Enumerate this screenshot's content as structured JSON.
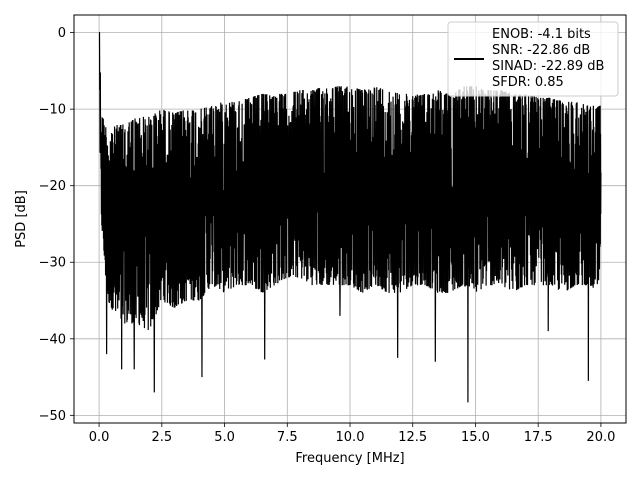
{
  "chart_data": {
    "type": "line",
    "title": "",
    "xlabel": "Frequency [MHz]",
    "ylabel": "PSD [dB]",
    "xlim": [
      -1.0,
      21.0
    ],
    "ylim": [
      -51.0,
      2.3
    ],
    "xticks": [
      0.0,
      2.5,
      5.0,
      7.5,
      10.0,
      12.5,
      15.0,
      17.5,
      20.0
    ],
    "xtick_labels": [
      "0.0",
      "2.5",
      "5.0",
      "7.5",
      "10.0",
      "12.5",
      "15.0",
      "17.5",
      "20.0"
    ],
    "yticks": [
      0,
      -10,
      -20,
      -30,
      -40,
      -50
    ],
    "ytick_labels": [
      "0",
      "−10",
      "−20",
      "−30",
      "−40",
      "−50"
    ],
    "grid": true,
    "legend_position": "top-right",
    "legend": [
      "ENOB: -4.1 bits",
      "SNR: -22.86 dB",
      "SINAD: -22.89 dB",
      "SFDR: 0.85"
    ],
    "series": [
      {
        "color": "#000000",
        "envelope": {
          "x": [
            0.0,
            0.05,
            0.1,
            0.2,
            0.35,
            0.5,
            0.75,
            1.0,
            1.5,
            2.0,
            2.5,
            3.0,
            3.5,
            4.0,
            4.5,
            5.0,
            5.5,
            6.0,
            6.5,
            7.0,
            7.5,
            8.0,
            8.5,
            9.0,
            9.5,
            10.0,
            10.5,
            11.0,
            11.5,
            12.0,
            12.5,
            13.0,
            13.5,
            14.0,
            14.5,
            15.0,
            15.5,
            16.0,
            16.5,
            17.0,
            17.5,
            18.0,
            18.5,
            19.0,
            19.5,
            20.0
          ],
          "upper": [
            0.0,
            -5.0,
            -10.5,
            -11.5,
            -13.0,
            -12.5,
            -12.0,
            -12.0,
            -11.0,
            -11.0,
            -10.0,
            -10.5,
            -10.0,
            -10.0,
            -9.5,
            -9.0,
            -9.0,
            -8.5,
            -8.0,
            -8.0,
            -8.0,
            -7.5,
            -7.5,
            -7.0,
            -7.0,
            -7.0,
            -7.5,
            -7.0,
            -7.5,
            -8.0,
            -8.0,
            -8.0,
            -7.5,
            -8.0,
            -7.0,
            -7.0,
            -7.5,
            -7.5,
            -8.0,
            -8.0,
            -8.5,
            -8.5,
            -9.0,
            -9.0,
            -9.5,
            -9.5
          ],
          "lower": [
            -5.0,
            -22.0,
            -25.0,
            -30.0,
            -35.0,
            -36.0,
            -38.0,
            -38.0,
            -38.0,
            -39.0,
            -35.0,
            -36.0,
            -35.0,
            -35.0,
            -33.0,
            -34.0,
            -33.0,
            -33.0,
            -34.0,
            -33.0,
            -32.0,
            -32.0,
            -33.0,
            -33.0,
            -33.0,
            -33.0,
            -34.0,
            -33.0,
            -34.0,
            -34.0,
            -33.0,
            -33.0,
            -34.0,
            -34.0,
            -33.0,
            -34.0,
            -33.0,
            -33.0,
            -34.0,
            -33.0,
            -33.0,
            -33.0,
            -34.0,
            -33.0,
            -33.0,
            -34.0
          ]
        },
        "spikes": [
          {
            "x": 0.3,
            "y": -42.0
          },
          {
            "x": 0.9,
            "y": -44.0
          },
          {
            "x": 1.4,
            "y": -44.0
          },
          {
            "x": 2.2,
            "y": -47.0
          },
          {
            "x": 4.1,
            "y": -45.0
          },
          {
            "x": 6.6,
            "y": -42.7
          },
          {
            "x": 9.6,
            "y": -37.0
          },
          {
            "x": 11.9,
            "y": -42.5
          },
          {
            "x": 13.4,
            "y": -43.0
          },
          {
            "x": 14.7,
            "y": -48.3
          },
          {
            "x": 17.9,
            "y": -39.0
          },
          {
            "x": 19.5,
            "y": -45.5
          }
        ]
      }
    ]
  }
}
